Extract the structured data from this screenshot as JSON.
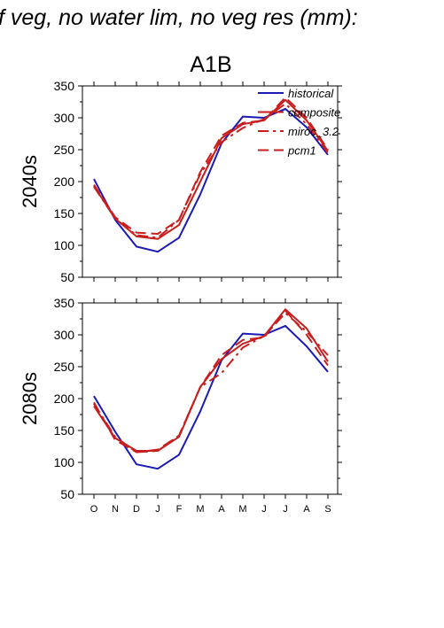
{
  "page_title": "f veg, no water lim, no veg res (mm):",
  "panel_title": "A1B",
  "colors": {
    "historical": "#1a1ab4",
    "scenario": "#c81e1e",
    "axis": "#000000"
  },
  "chart_data": [
    {
      "type": "line",
      "row_label": "2040s",
      "categories": [
        "O",
        "N",
        "D",
        "J",
        "F",
        "M",
        "A",
        "M",
        "J",
        "J",
        "A",
        "S"
      ],
      "ylim": [
        50,
        350
      ],
      "yticks": [
        50,
        100,
        150,
        200,
        250,
        300,
        350
      ],
      "legend_position": "top-right",
      "series": [
        {
          "name": "historical",
          "style": "solid",
          "color": "#1a1ab4",
          "values": [
            204,
            140,
            98,
            90,
            112,
            180,
            260,
            302,
            300,
            314,
            285,
            242
          ]
        },
        {
          "name": "composite",
          "style": "solid",
          "color": "#c81e1e",
          "values": [
            193,
            142,
            114,
            110,
            132,
            200,
            268,
            290,
            296,
            328,
            296,
            248
          ]
        },
        {
          "name": "miroc_3.2",
          "style": "dashdot",
          "color": "#c81e1e",
          "values": [
            192,
            142,
            116,
            112,
            140,
            212,
            262,
            284,
            298,
            322,
            290,
            245
          ]
        },
        {
          "name": "pcm1",
          "style": "dashed",
          "color": "#c81e1e",
          "values": [
            195,
            144,
            120,
            118,
            140,
            215,
            272,
            292,
            296,
            332,
            300,
            250
          ]
        }
      ]
    },
    {
      "type": "line",
      "row_label": "2080s",
      "categories": [
        "O",
        "N",
        "D",
        "J",
        "F",
        "M",
        "A",
        "M",
        "J",
        "J",
        "A",
        "S"
      ],
      "ylim": [
        50,
        350
      ],
      "yticks": [
        50,
        100,
        150,
        200,
        250,
        300,
        350
      ],
      "series": [
        {
          "name": "historical",
          "style": "solid",
          "color": "#1a1ab4",
          "values": [
            204,
            148,
            97,
            90,
            112,
            180,
            260,
            302,
            300,
            314,
            282,
            242
          ]
        },
        {
          "name": "composite",
          "style": "solid",
          "color": "#c81e1e",
          "values": [
            188,
            138,
            118,
            118,
            140,
            218,
            262,
            286,
            298,
            340,
            310,
            258
          ]
        },
        {
          "name": "miroc_3.2",
          "style": "dashdot",
          "color": "#c81e1e",
          "values": [
            192,
            140,
            116,
            118,
            142,
            218,
            240,
            280,
            298,
            334,
            305,
            268
          ]
        },
        {
          "name": "pcm1",
          "style": "dashed",
          "color": "#c81e1e",
          "values": [
            194,
            135,
            116,
            120,
            142,
            218,
            268,
            292,
            296,
            338,
            300,
            252
          ]
        }
      ]
    }
  ]
}
